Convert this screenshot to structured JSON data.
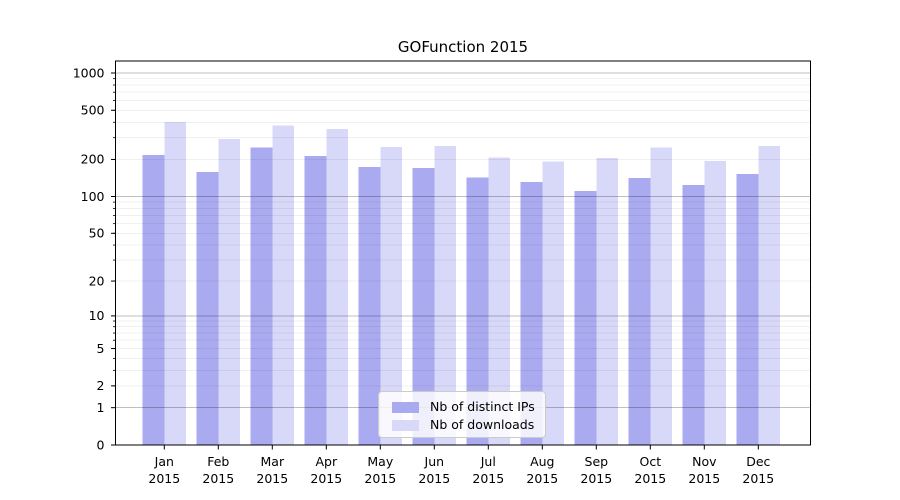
{
  "chart_data": {
    "type": "bar",
    "title": "GOFunction 2015",
    "categories": [
      "Jan 2015",
      "Feb 2015",
      "Mar 2015",
      "Apr 2015",
      "May 2015",
      "Jun 2015",
      "Jul 2015",
      "Aug 2015",
      "Sep 2015",
      "Oct 2015",
      "Nov 2015",
      "Dec 2015"
    ],
    "series": [
      {
        "name": "Nb of distinct IPs",
        "color": "#aaaaf0",
        "values": [
          217,
          158,
          249,
          214,
          173,
          170,
          143,
          131,
          111,
          142,
          124,
          152
        ]
      },
      {
        "name": "Nb of downloads",
        "color": "#d8d8f8",
        "values": [
          401,
          293,
          375,
          352,
          253,
          258,
          208,
          192,
          206,
          249,
          194,
          257
        ]
      }
    ],
    "y_ticks": [
      0,
      1,
      2,
      5,
      10,
      20,
      50,
      100,
      200,
      500,
      1000
    ],
    "y_scale": "log1p",
    "ylim": [
      0,
      1250
    ],
    "xlabel": "",
    "ylabel": "",
    "grid": true,
    "legend_position": "lower-center"
  }
}
